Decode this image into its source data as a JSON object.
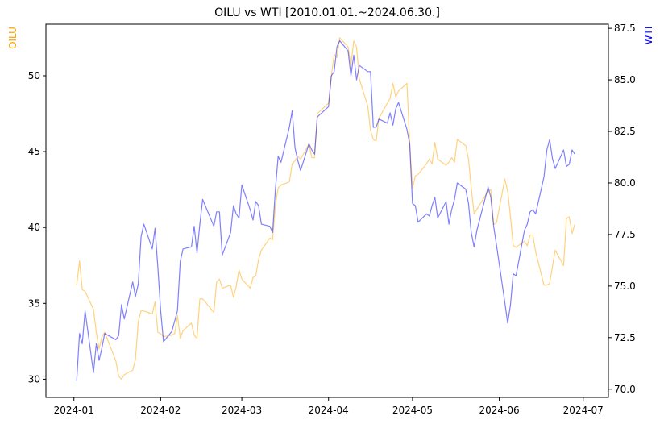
{
  "chart_data": {
    "type": "line",
    "title": "OILU vs WTI [2010.01.01.~2024.06.30.]",
    "ylabel_left": "OILU",
    "ylabel_right": "WTI",
    "x_ticks": [
      "2024-01",
      "2024-02",
      "2024-03",
      "2024-04",
      "2024-05",
      "2024-06",
      "2024-07"
    ],
    "y_left_ticks": [
      30,
      35,
      40,
      45,
      50
    ],
    "y_right_ticks": [
      "70.0",
      "72.5",
      "75.0",
      "77.5",
      "80.0",
      "82.5",
      "85.0",
      "87.5"
    ],
    "y_left_range": [
      28.8,
      53.4
    ],
    "y_right_range": [
      69.6,
      87.7
    ],
    "grid": false,
    "series": [
      {
        "name": "OILU",
        "axis": "left",
        "color": "#FFA500",
        "points": [
          [
            "2024-01-02",
            36.2
          ],
          [
            "2024-01-03",
            37.8
          ],
          [
            "2024-01-04",
            35.9
          ],
          [
            "2024-01-05",
            35.8
          ],
          [
            "2024-01-08",
            34.6
          ],
          [
            "2024-01-09",
            33.1
          ],
          [
            "2024-01-10",
            32.0
          ],
          [
            "2024-01-11",
            32.8
          ],
          [
            "2024-01-12",
            33.1
          ],
          [
            "2024-01-16",
            31.2
          ],
          [
            "2024-01-17",
            30.2
          ],
          [
            "2024-01-18",
            30.0
          ],
          [
            "2024-01-19",
            30.3
          ],
          [
            "2024-01-22",
            30.6
          ],
          [
            "2024-01-23",
            31.3
          ],
          [
            "2024-01-24",
            33.8
          ],
          [
            "2024-01-25",
            34.5
          ],
          [
            "2024-01-26",
            34.5
          ],
          [
            "2024-01-29",
            34.3
          ],
          [
            "2024-01-30",
            35.1
          ],
          [
            "2024-01-31",
            33.1
          ],
          [
            "2024-02-01",
            33.0
          ],
          [
            "2024-02-02",
            32.8
          ],
          [
            "2024-02-05",
            32.9
          ],
          [
            "2024-02-06",
            33.0
          ],
          [
            "2024-02-07",
            34.2
          ],
          [
            "2024-02-08",
            32.7
          ],
          [
            "2024-02-09",
            33.2
          ],
          [
            "2024-02-12",
            33.7
          ],
          [
            "2024-02-13",
            32.9
          ],
          [
            "2024-02-14",
            32.7
          ],
          [
            "2024-02-15",
            35.3
          ],
          [
            "2024-02-16",
            35.3
          ],
          [
            "2024-02-20",
            34.4
          ],
          [
            "2024-02-21",
            36.4
          ],
          [
            "2024-02-22",
            36.6
          ],
          [
            "2024-02-23",
            36.0
          ],
          [
            "2024-02-26",
            36.2
          ],
          [
            "2024-02-27",
            35.4
          ],
          [
            "2024-02-28",
            36.1
          ],
          [
            "2024-02-29",
            37.2
          ],
          [
            "2024-03-01",
            36.6
          ],
          [
            "2024-03-04",
            36.0
          ],
          [
            "2024-03-05",
            36.7
          ],
          [
            "2024-03-06",
            36.8
          ],
          [
            "2024-03-07",
            37.9
          ],
          [
            "2024-03-08",
            38.5
          ],
          [
            "2024-03-11",
            39.3
          ],
          [
            "2024-03-12",
            39.2
          ],
          [
            "2024-03-13",
            41.5
          ],
          [
            "2024-03-14",
            42.6
          ],
          [
            "2024-03-15",
            42.8
          ],
          [
            "2024-03-18",
            43.0
          ],
          [
            "2024-03-19",
            44.2
          ],
          [
            "2024-03-20",
            44.4
          ],
          [
            "2024-03-21",
            44.7
          ],
          [
            "2024-03-22",
            44.5
          ],
          [
            "2024-03-25",
            45.5
          ],
          [
            "2024-03-26",
            44.6
          ],
          [
            "2024-03-27",
            44.6
          ],
          [
            "2024-03-28",
            47.5
          ],
          [
            "2024-04-01",
            48.2
          ],
          [
            "2024-04-02",
            50.0
          ],
          [
            "2024-04-03",
            51.4
          ],
          [
            "2024-04-04",
            51.2
          ],
          [
            "2024-04-05",
            52.5
          ],
          [
            "2024-04-08",
            51.9
          ],
          [
            "2024-04-09",
            50.7
          ],
          [
            "2024-04-10",
            52.3
          ],
          [
            "2024-04-11",
            51.9
          ],
          [
            "2024-04-12",
            49.8
          ],
          [
            "2024-04-15",
            48.0
          ],
          [
            "2024-04-16",
            46.4
          ],
          [
            "2024-04-17",
            45.8
          ],
          [
            "2024-04-18",
            45.7
          ],
          [
            "2024-04-19",
            47.2
          ],
          [
            "2024-04-22",
            48.2
          ],
          [
            "2024-04-23",
            48.5
          ],
          [
            "2024-04-24",
            49.5
          ],
          [
            "2024-04-25",
            48.6
          ],
          [
            "2024-04-26",
            49.0
          ],
          [
            "2024-04-29",
            49.5
          ],
          [
            "2024-04-30",
            45.6
          ],
          [
            "2024-05-01",
            42.6
          ],
          [
            "2024-05-02",
            43.4
          ],
          [
            "2024-05-03",
            43.5
          ],
          [
            "2024-05-06",
            44.2
          ],
          [
            "2024-05-07",
            44.5
          ],
          [
            "2024-05-08",
            44.2
          ],
          [
            "2024-05-09",
            45.6
          ],
          [
            "2024-05-10",
            44.5
          ],
          [
            "2024-05-13",
            44.1
          ],
          [
            "2024-05-14",
            44.3
          ],
          [
            "2024-05-15",
            44.6
          ],
          [
            "2024-05-16",
            44.3
          ],
          [
            "2024-05-17",
            45.8
          ],
          [
            "2024-05-20",
            45.4
          ],
          [
            "2024-05-21",
            44.5
          ],
          [
            "2024-05-22",
            42.6
          ],
          [
            "2024-05-23",
            40.9
          ],
          [
            "2024-05-24",
            41.2
          ],
          [
            "2024-05-28",
            42.4
          ],
          [
            "2024-05-29",
            42.5
          ],
          [
            "2024-05-30",
            40.2
          ],
          [
            "2024-05-31",
            40.3
          ],
          [
            "2024-06-03",
            43.2
          ],
          [
            "2024-06-04",
            42.4
          ],
          [
            "2024-06-05",
            40.7
          ],
          [
            "2024-06-06",
            38.8
          ],
          [
            "2024-06-07",
            38.7
          ],
          [
            "2024-06-10",
            39.1
          ],
          [
            "2024-06-11",
            38.8
          ],
          [
            "2024-06-12",
            39.5
          ],
          [
            "2024-06-13",
            39.5
          ],
          [
            "2024-06-14",
            38.4
          ],
          [
            "2024-06-17",
            36.2
          ],
          [
            "2024-06-18",
            36.2
          ],
          [
            "2024-06-19",
            36.3
          ],
          [
            "2024-06-20",
            37.4
          ],
          [
            "2024-06-21",
            38.5
          ],
          [
            "2024-06-24",
            37.5
          ],
          [
            "2024-06-25",
            40.6
          ],
          [
            "2024-06-26",
            40.7
          ],
          [
            "2024-06-27",
            39.6
          ],
          [
            "2024-06-28",
            40.2
          ]
        ]
      },
      {
        "name": "WTI",
        "axis": "right",
        "color": "#0000FF",
        "points": [
          [
            "2024-01-02",
            70.4
          ],
          [
            "2024-01-03",
            72.7
          ],
          [
            "2024-01-04",
            72.2
          ],
          [
            "2024-01-05",
            73.8
          ],
          [
            "2024-01-08",
            70.8
          ],
          [
            "2024-01-09",
            72.2
          ],
          [
            "2024-01-10",
            71.4
          ],
          [
            "2024-01-11",
            72.0
          ],
          [
            "2024-01-12",
            72.7
          ],
          [
            "2024-01-16",
            72.4
          ],
          [
            "2024-01-17",
            72.6
          ],
          [
            "2024-01-18",
            74.1
          ],
          [
            "2024-01-19",
            73.4
          ],
          [
            "2024-01-22",
            75.2
          ],
          [
            "2024-01-23",
            74.5
          ],
          [
            "2024-01-24",
            75.1
          ],
          [
            "2024-01-25",
            77.4
          ],
          [
            "2024-01-26",
            78.0
          ],
          [
            "2024-01-29",
            76.8
          ],
          [
            "2024-01-30",
            77.8
          ],
          [
            "2024-01-31",
            75.9
          ],
          [
            "2024-02-01",
            73.8
          ],
          [
            "2024-02-02",
            72.3
          ],
          [
            "2024-02-05",
            72.8
          ],
          [
            "2024-02-06",
            73.3
          ],
          [
            "2024-02-07",
            73.8
          ],
          [
            "2024-02-08",
            76.2
          ],
          [
            "2024-02-09",
            76.8
          ],
          [
            "2024-02-12",
            76.9
          ],
          [
            "2024-02-13",
            77.9
          ],
          [
            "2024-02-14",
            76.6
          ],
          [
            "2024-02-15",
            78.0
          ],
          [
            "2024-02-16",
            79.2
          ],
          [
            "2024-02-20",
            77.9
          ],
          [
            "2024-02-21",
            78.6
          ],
          [
            "2024-02-22",
            78.6
          ],
          [
            "2024-02-23",
            76.5
          ],
          [
            "2024-02-26",
            77.6
          ],
          [
            "2024-02-27",
            78.9
          ],
          [
            "2024-02-28",
            78.5
          ],
          [
            "2024-02-29",
            78.3
          ],
          [
            "2024-03-01",
            79.9
          ],
          [
            "2024-03-04",
            78.7
          ],
          [
            "2024-03-05",
            78.2
          ],
          [
            "2024-03-06",
            79.1
          ],
          [
            "2024-03-07",
            78.9
          ],
          [
            "2024-03-08",
            78.0
          ],
          [
            "2024-03-11",
            77.9
          ],
          [
            "2024-03-12",
            77.6
          ],
          [
            "2024-03-13",
            79.7
          ],
          [
            "2024-03-14",
            81.3
          ],
          [
            "2024-03-15",
            81.0
          ],
          [
            "2024-03-18",
            82.7
          ],
          [
            "2024-03-19",
            83.5
          ],
          [
            "2024-03-20",
            81.7
          ],
          [
            "2024-03-21",
            81.1
          ],
          [
            "2024-03-22",
            80.6
          ],
          [
            "2024-03-25",
            81.9
          ],
          [
            "2024-03-26",
            81.6
          ],
          [
            "2024-03-27",
            81.4
          ],
          [
            "2024-03-28",
            83.2
          ],
          [
            "2024-04-01",
            83.7
          ],
          [
            "2024-04-02",
            85.2
          ],
          [
            "2024-04-03",
            85.4
          ],
          [
            "2024-04-04",
            86.6
          ],
          [
            "2024-04-05",
            86.9
          ],
          [
            "2024-04-08",
            86.4
          ],
          [
            "2024-04-09",
            85.2
          ],
          [
            "2024-04-10",
            86.2
          ],
          [
            "2024-04-11",
            85.0
          ],
          [
            "2024-04-12",
            85.7
          ],
          [
            "2024-04-15",
            85.4
          ],
          [
            "2024-04-16",
            85.4
          ],
          [
            "2024-04-17",
            82.7
          ],
          [
            "2024-04-18",
            82.7
          ],
          [
            "2024-04-19",
            83.1
          ],
          [
            "2024-04-22",
            82.9
          ],
          [
            "2024-04-23",
            83.4
          ],
          [
            "2024-04-24",
            82.8
          ],
          [
            "2024-04-25",
            83.6
          ],
          [
            "2024-04-26",
            83.9
          ],
          [
            "2024-04-29",
            82.6
          ],
          [
            "2024-04-30",
            81.9
          ],
          [
            "2024-05-01",
            79.0
          ],
          [
            "2024-05-02",
            78.9
          ],
          [
            "2024-05-03",
            78.1
          ],
          [
            "2024-05-06",
            78.5
          ],
          [
            "2024-05-07",
            78.4
          ],
          [
            "2024-05-08",
            78.9
          ],
          [
            "2024-05-09",
            79.3
          ],
          [
            "2024-05-10",
            78.3
          ],
          [
            "2024-05-13",
            79.1
          ],
          [
            "2024-05-14",
            78.0
          ],
          [
            "2024-05-15",
            78.7
          ],
          [
            "2024-05-16",
            79.2
          ],
          [
            "2024-05-17",
            80.0
          ],
          [
            "2024-05-20",
            79.7
          ],
          [
            "2024-05-21",
            79.0
          ],
          [
            "2024-05-22",
            77.6
          ],
          [
            "2024-05-23",
            76.9
          ],
          [
            "2024-05-24",
            77.7
          ],
          [
            "2024-05-28",
            79.8
          ],
          [
            "2024-05-29",
            79.3
          ],
          [
            "2024-05-30",
            77.9
          ],
          [
            "2024-05-31",
            77.0
          ],
          [
            "2024-06-03",
            74.2
          ],
          [
            "2024-06-04",
            73.2
          ],
          [
            "2024-06-05",
            74.1
          ],
          [
            "2024-06-06",
            75.6
          ],
          [
            "2024-06-07",
            75.5
          ],
          [
            "2024-06-10",
            77.7
          ],
          [
            "2024-06-11",
            78.0
          ],
          [
            "2024-06-12",
            78.6
          ],
          [
            "2024-06-13",
            78.7
          ],
          [
            "2024-06-14",
            78.5
          ],
          [
            "2024-06-17",
            80.3
          ],
          [
            "2024-06-18",
            81.6
          ],
          [
            "2024-06-19",
            82.1
          ],
          [
            "2024-06-20",
            81.2
          ],
          [
            "2024-06-21",
            80.7
          ],
          [
            "2024-06-24",
            81.6
          ],
          [
            "2024-06-25",
            80.8
          ],
          [
            "2024-06-26",
            80.9
          ],
          [
            "2024-06-27",
            81.6
          ],
          [
            "2024-06-28",
            81.4
          ]
        ]
      }
    ]
  }
}
